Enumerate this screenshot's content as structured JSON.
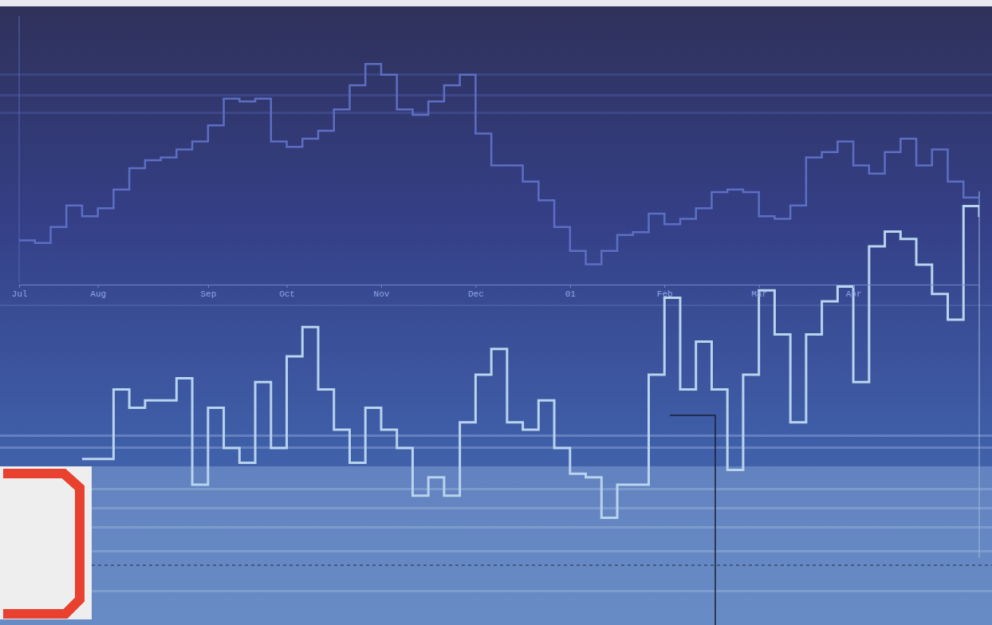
{
  "chart_data": {
    "type": "line",
    "categories": [
      "Jul",
      null,
      null,
      null,
      null,
      "Aug",
      null,
      null,
      null,
      null,
      null,
      null,
      "Sep",
      null,
      null,
      null,
      null,
      "Oct",
      null,
      null,
      null,
      null,
      null,
      "Nov",
      null,
      null,
      null,
      null,
      null,
      "Dec",
      null,
      null,
      null,
      null,
      null,
      "01",
      null,
      null,
      null,
      null,
      null,
      "Feb",
      null,
      null,
      null,
      null,
      null,
      "Mar",
      null,
      null,
      null,
      null,
      null,
      "Apr",
      null,
      null,
      null,
      null,
      null,
      null,
      null,
      null
    ],
    "series": [
      {
        "color": "#5d6fc4",
        "values": [
          16,
          15,
          21,
          29,
          25,
          28,
          35,
          43,
          46,
          47,
          50,
          53,
          59,
          69,
          68,
          69,
          53,
          51,
          54,
          57,
          65,
          74,
          82,
          78,
          65,
          63,
          68,
          74,
          78,
          56,
          44,
          44,
          38,
          31,
          21,
          12,
          7,
          12,
          18,
          19,
          26,
          22,
          24,
          28,
          34,
          35,
          34,
          25,
          24,
          29,
          47,
          49,
          53,
          44,
          41,
          49,
          54,
          44,
          50,
          38,
          32,
          29
        ]
      },
      {
        "color": "#b8d4ee",
        "axis": "y2",
        "values": [
          null,
          null,
          null,
          null,
          27,
          27,
          46,
          41,
          43,
          43,
          49,
          20,
          41,
          30,
          26,
          48,
          30,
          55,
          63,
          46,
          35,
          26,
          41,
          35,
          30,
          17,
          22,
          17,
          37,
          50,
          57,
          37,
          35,
          43,
          30,
          23,
          22,
          11,
          20,
          20,
          50,
          71,
          46,
          59,
          46,
          24,
          50,
          73,
          61,
          37,
          61,
          70,
          74,
          48,
          85,
          89,
          87,
          80,
          72,
          65,
          96,
          93
        ]
      }
    ],
    "ylim": [
      0,
      100
    ],
    "y2lim": [
      0,
      100
    ],
    "grid": false,
    "tick_labels": "x"
  }
}
